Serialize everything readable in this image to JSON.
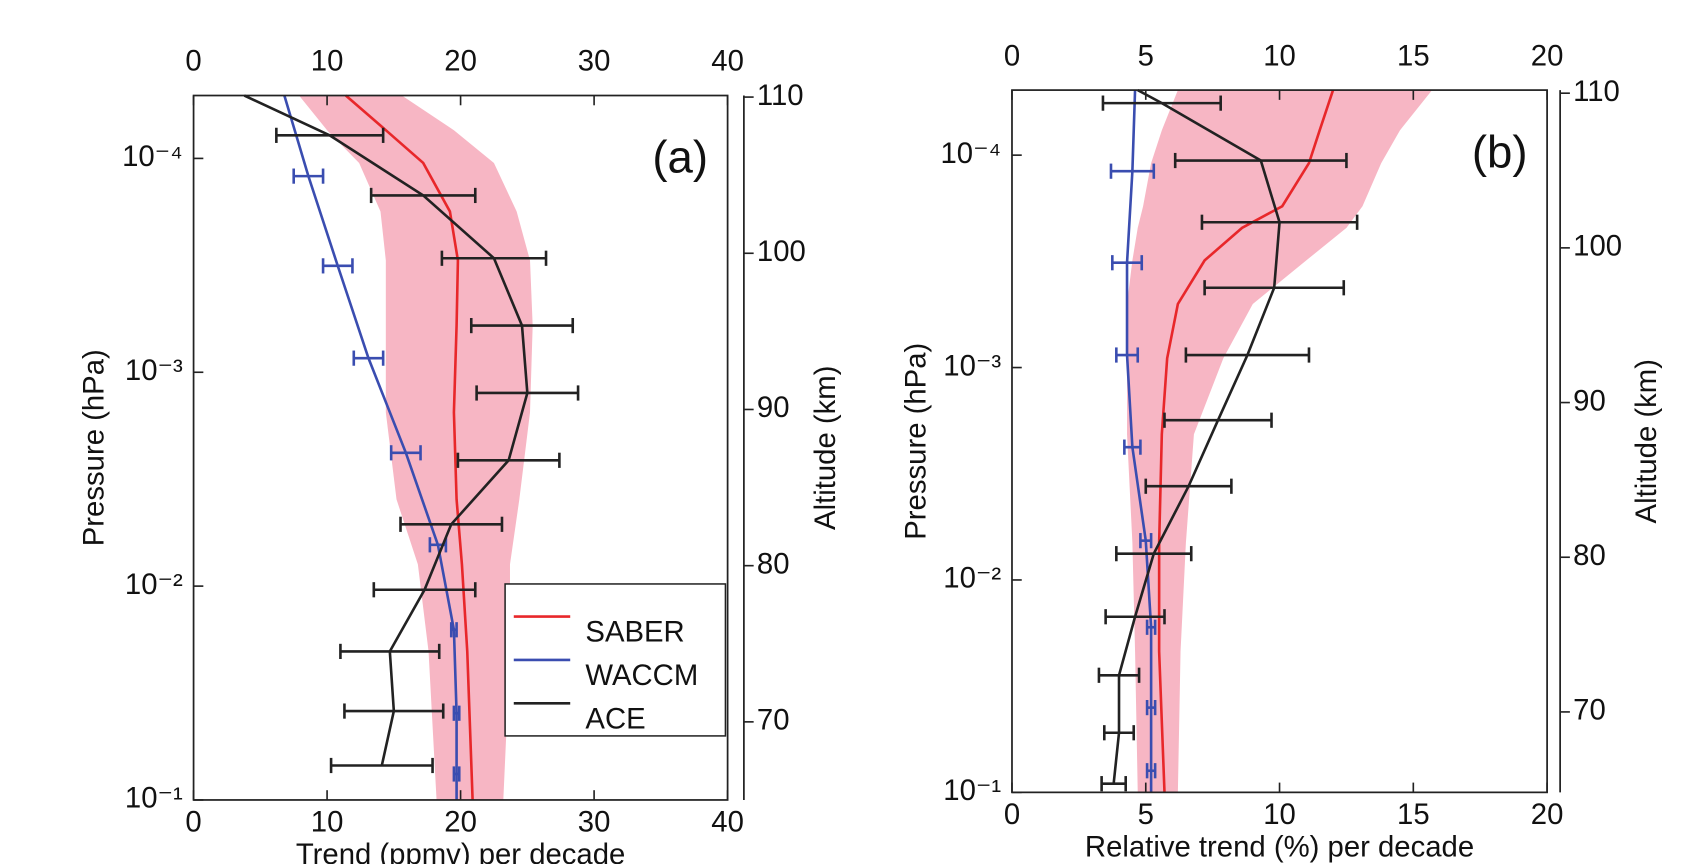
{
  "chart_data": [
    {
      "type": "line",
      "panel_label": "(a)",
      "xlabel": "Trend (ppmv) per decade",
      "ylabel": "Pressure (hPa)",
      "y2label": "Altitude (km)",
      "xlim": [
        0,
        40
      ],
      "xticks": [
        0,
        10,
        20,
        30,
        40
      ],
      "ylog": true,
      "ylim": [
        0.1,
        5.08e-05
      ],
      "yticks": [
        {
          "value": 0.0001,
          "label": "10⁻⁴"
        },
        {
          "value": 0.001,
          "label": "10⁻³"
        },
        {
          "value": 0.01,
          "label": "10⁻²"
        },
        {
          "value": 0.1,
          "label": "10⁻¹"
        }
      ],
      "y2lim": [
        65,
        110.1
      ],
      "y2ticks": [
        70,
        80,
        90,
        100,
        110
      ],
      "grid": false,
      "legend": "lower right",
      "series": [
        {
          "name": "SABER",
          "color": "#e8272a",
          "band_color": "#f7b6c4",
          "pressure": [
            5.08e-05,
            7.38e-05,
            0.000105,
            0.000177,
            0.0003,
            0.000605,
            0.00154,
            0.00393,
            0.00791,
            0.0202,
            0.1
          ],
          "values": [
            11.4,
            14.4,
            17.2,
            19.2,
            19.8,
            19.7,
            19.5,
            19.7,
            20.1,
            20.5,
            20.9
          ],
          "lower": [
            7.9,
            10.0,
            12.4,
            14.0,
            14.4,
            14.4,
            14.4,
            15.2,
            16.8,
            17.6,
            18.2
          ],
          "upper": [
            15.6,
            19.5,
            22.5,
            24.2,
            25.2,
            25.4,
            25.2,
            24.4,
            23.7,
            23.7,
            23.2
          ]
        },
        {
          "name": "WACCM",
          "color": "#3a4db0",
          "pressure": [
            5.08e-05,
            0.000121,
            0.000318,
            0.000859,
            0.00238,
            0.00641,
            0.016,
            0.0393,
            0.0756,
            0.1
          ],
          "values": [
            6.8,
            8.6,
            10.8,
            13.1,
            15.9,
            18.3,
            19.5,
            19.7,
            19.7,
            19.7
          ],
          "errors": [
            null,
            1.1,
            1.1,
            1.1,
            1.1,
            0.6,
            0.2,
            0.2,
            0.2,
            null
          ]
        },
        {
          "name": "ACE",
          "color": "#222222",
          "pressure": [
            5.08e-05,
            7.8e-05,
            0.000149,
            0.000293,
            0.000605,
            0.00125,
            0.00258,
            0.00514,
            0.0104,
            0.0202,
            0.0384,
            0.069
          ],
          "values": [
            3.8,
            10.2,
            17.2,
            22.5,
            24.6,
            25.0,
            23.6,
            19.3,
            17.3,
            14.7,
            15.0,
            14.1
          ],
          "errors": [
            null,
            4.0,
            3.9,
            3.9,
            3.8,
            3.8,
            3.8,
            3.8,
            3.8,
            3.7,
            3.7,
            3.8
          ]
        }
      ]
    },
    {
      "type": "line",
      "panel_label": "(b)",
      "xlabel": "Relative trend (%) per decade",
      "ylabel": "Pressure (hPa)",
      "y2label": "Altitude (km)",
      "xlim": [
        0,
        20
      ],
      "xticks": [
        0,
        5,
        10,
        15,
        20
      ],
      "ylog": true,
      "ylim": [
        0.1,
        4.94e-05
      ],
      "yticks": [
        {
          "value": 0.0001,
          "label": "10⁻⁴"
        },
        {
          "value": 0.001,
          "label": "10⁻³"
        },
        {
          "value": 0.01,
          "label": "10⁻²"
        },
        {
          "value": 0.1,
          "label": "10⁻¹"
        }
      ],
      "y2lim": [
        64.8,
        110.2
      ],
      "y2ticks": [
        70,
        80,
        90,
        100,
        110
      ],
      "grid": false,
      "series": [
        {
          "name": "SABER",
          "color": "#e8272a",
          "band_color": "#f7b6c4",
          "pressure": [
            4.94e-05,
            7.64e-05,
            0.000109,
            0.000174,
            0.00022,
            0.000313,
            0.000502,
            0.000904,
            0.00206,
            0.00668,
            0.0217,
            0.1
          ],
          "values": [
            12.0,
            11.5,
            11.1,
            10.1,
            8.6,
            7.2,
            6.2,
            5.8,
            5.6,
            5.5,
            5.5,
            5.7
          ],
          "lower": [
            6.2,
            5.6,
            5.2,
            4.9,
            4.7,
            4.5,
            4.3,
            4.3,
            4.3,
            4.5,
            4.6,
            4.7
          ],
          "upper": [
            15.7,
            14.5,
            13.8,
            13.1,
            12.5,
            11.0,
            9.0,
            7.9,
            6.8,
            6.5,
            6.3,
            6.2
          ]
        },
        {
          "name": "WACCM",
          "color": "#3a4db0",
          "pressure": [
            4.94e-05,
            0.000119,
            0.000321,
            0.000873,
            0.00237,
            0.00653,
            0.0167,
            0.0399,
            0.0791,
            0.1
          ],
          "values": [
            4.6,
            4.5,
            4.3,
            4.3,
            4.5,
            5.0,
            5.2,
            5.2,
            5.2,
            5.2
          ],
          "errors": [
            null,
            0.8,
            0.55,
            0.4,
            0.3,
            0.2,
            0.15,
            0.15,
            0.15,
            null
          ]
        },
        {
          "name": "ACE",
          "color": "#222222",
          "pressure": [
            4.94e-05,
            5.69e-05,
            0.000106,
            0.000207,
            0.000421,
            0.000873,
            0.00177,
            0.00362,
            0.00752,
            0.0149,
            0.0281,
            0.0524,
            0.091
          ],
          "values": [
            4.7,
            5.6,
            9.3,
            10.0,
            9.8,
            8.8,
            7.7,
            6.6,
            5.3,
            4.6,
            4.0,
            4.0,
            3.8
          ],
          "errors": [
            null,
            2.2,
            3.2,
            2.9,
            2.6,
            2.3,
            2.0,
            1.6,
            1.4,
            1.1,
            0.75,
            0.55,
            0.45
          ]
        }
      ]
    }
  ]
}
